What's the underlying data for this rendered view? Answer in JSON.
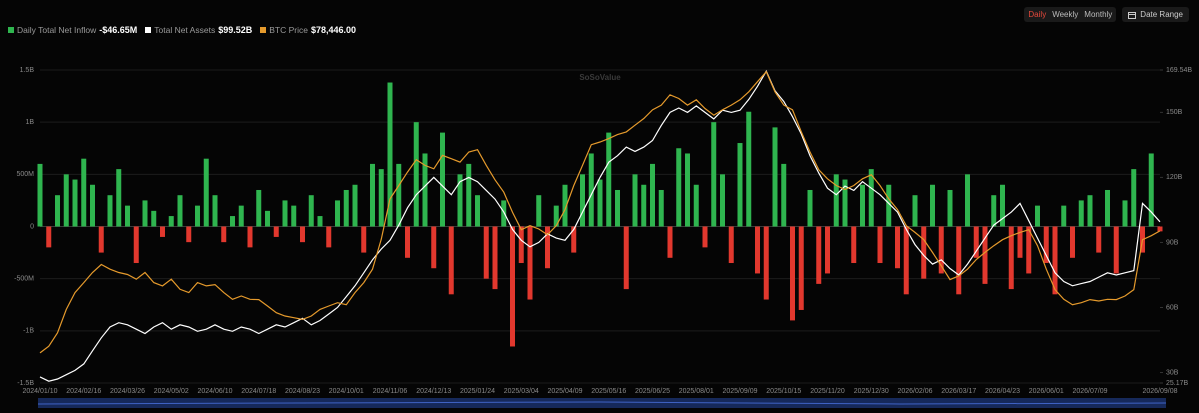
{
  "chart_data": {
    "type": "combo",
    "watermark": "SoSoValue",
    "controls": {
      "intervals": [
        "Daily",
        "Weekly",
        "Monthly"
      ],
      "active": 0,
      "date_range": "Date Range"
    },
    "grid": true,
    "categories": [
      "2024/01/10",
      null,
      null,
      null,
      null,
      "2024/02/16",
      null,
      null,
      null,
      null,
      "2024/03/26",
      null,
      null,
      null,
      null,
      "2024/05/02",
      null,
      null,
      null,
      null,
      "2024/06/10",
      null,
      null,
      null,
      null,
      "2024/07/18",
      null,
      null,
      null,
      null,
      "2024/08/23",
      null,
      null,
      null,
      null,
      "2024/10/01",
      null,
      null,
      null,
      null,
      "2024/11/06",
      null,
      null,
      null,
      null,
      "2024/12/13",
      null,
      null,
      null,
      null,
      "2025/01/24",
      null,
      null,
      null,
      null,
      "2025/03/04",
      null,
      null,
      null,
      null,
      "2025/04/09",
      null,
      null,
      null,
      null,
      "2025/05/16",
      null,
      null,
      null,
      null,
      "2025/06/25",
      null,
      null,
      null,
      null,
      "2025/08/01",
      null,
      null,
      null,
      null,
      "2025/09/09",
      null,
      null,
      null,
      null,
      "2025/10/15",
      null,
      null,
      null,
      null,
      "2025/11/20",
      null,
      null,
      null,
      null,
      "2025/12/30",
      null,
      null,
      null,
      null,
      "2026/02/06",
      null,
      null,
      null,
      null,
      "2026/03/17",
      null,
      null,
      null,
      null,
      "2026/04/23",
      null,
      null,
      null,
      null,
      "2026/06/01",
      null,
      null,
      null,
      null,
      "2026/07/09",
      null,
      null,
      null,
      null,
      null,
      null,
      null,
      "2026/09/08"
    ],
    "ylim": [
      -1500,
      1500
    ],
    "yticks": [
      {
        "value": -1500,
        "label": "-1.5B"
      },
      {
        "value": -1000,
        "label": "-1B"
      },
      {
        "value": -500,
        "label": "-500M"
      },
      0,
      {
        "value": 500,
        "label": "500M"
      },
      {
        "value": 1000,
        "label": "1B"
      },
      {
        "value": 1500,
        "label": "1.5B"
      }
    ],
    "y2lim": [
      25.17,
      169.54
    ],
    "y2ticks": [
      {
        "value": 25.17,
        "label": "25.17B"
      },
      {
        "value": 30,
        "label": "30B"
      },
      {
        "value": 60,
        "label": "60B"
      },
      {
        "value": 90,
        "label": "90B"
      },
      {
        "value": 120,
        "label": "120B"
      },
      {
        "value": 150,
        "label": "150B"
      },
      {
        "value": 169.54,
        "label": "169.54B"
      }
    ],
    "y3lim": [
      33000,
      126500
    ],
    "series": [
      {
        "name": "Daily Total Net Inflow",
        "type": "bar",
        "color": "#2fb54f",
        "negative_color": "#e2382e",
        "legend_value": "-$46.65M",
        "values": [
          600,
          -200,
          300,
          500,
          450,
          650,
          400,
          -250,
          300,
          550,
          200,
          -350,
          250,
          150,
          -100,
          100,
          300,
          -150,
          200,
          650,
          300,
          -150,
          100,
          200,
          -200,
          350,
          150,
          -100,
          250,
          200,
          -150,
          300,
          100,
          -200,
          250,
          350,
          400,
          -250,
          600,
          550,
          1380,
          600,
          -300,
          1000,
          700,
          -400,
          900,
          -650,
          500,
          600,
          300,
          -500,
          -600,
          250,
          -1150,
          -350,
          -700,
          300,
          -400,
          200,
          400,
          -250,
          500,
          700,
          450,
          900,
          350,
          -600,
          500,
          400,
          600,
          350,
          -300,
          750,
          700,
          400,
          -200,
          1000,
          500,
          -350,
          800,
          1100,
          -450,
          -700,
          950,
          600,
          -900,
          -800,
          350,
          -550,
          -450,
          500,
          450,
          -350,
          400,
          550,
          -350,
          400,
          -400,
          -650,
          300,
          -500,
          400,
          -450,
          350,
          -650,
          500,
          -300,
          -550,
          300,
          400,
          -600,
          -300,
          -450,
          200,
          -350,
          -650,
          200,
          -300,
          250,
          300,
          -250,
          350,
          -450,
          250,
          550,
          -250,
          700,
          -46.65
        ]
      },
      {
        "name": "Total Net Assets",
        "type": "line",
        "axis": "y2",
        "color": "#ffffff",
        "legend_value": "$99.52B",
        "values": [
          28,
          26,
          27,
          29,
          31,
          34,
          40,
          46,
          51,
          53,
          52,
          50,
          48,
          51,
          53,
          50,
          52,
          51,
          49,
          50,
          52,
          50,
          49,
          51,
          50,
          48,
          50,
          52,
          51,
          53,
          55,
          52,
          54,
          57,
          60,
          65,
          70,
          76,
          82,
          87,
          91,
          98,
          106,
          112,
          116,
          120,
          116,
          112,
          118,
          120,
          118,
          114,
          110,
          104,
          96,
          91,
          88,
          90,
          94,
          92,
          91,
          96,
          104,
          112,
          120,
          127,
          130,
          134,
          132,
          134,
          137,
          144,
          150,
          152,
          150,
          153,
          150,
          147,
          151,
          150,
          151,
          156,
          162,
          169,
          160,
          155,
          148,
          140,
          130,
          122,
          115,
          112,
          116,
          114,
          118,
          115,
          112,
          108,
          104,
          96,
          89,
          84,
          80,
          82,
          78,
          75,
          80,
          86,
          92,
          98,
          101,
          104,
          108,
          100,
          92,
          84,
          76,
          72,
          70,
          71,
          72,
          74,
          76,
          75,
          76,
          77,
          108,
          104,
          99.52
        ]
      },
      {
        "name": "BTC Price",
        "type": "line",
        "axis": "y3",
        "color": "#e59a2c",
        "legend_value": "$78,446.00",
        "values": [
          42000,
          44000,
          48000,
          55000,
          60000,
          63000,
          66000,
          68400,
          67000,
          66000,
          65400,
          64000,
          66000,
          63000,
          62000,
          64000,
          61000,
          60000,
          63000,
          62000,
          62400,
          60000,
          58000,
          59000,
          58000,
          57900,
          56000,
          54000,
          53000,
          52500,
          52000,
          53000,
          55000,
          56000,
          57000,
          56400,
          60000,
          63000,
          67000,
          76000,
          88000,
          92000,
          96000,
          99700,
          98000,
          97000,
          101000,
          100000,
          99000,
          102000,
          102700,
          98000,
          93700,
          90000,
          84000,
          78800,
          80000,
          79000,
          77300,
          80000,
          84800,
          92000,
          98000,
          104200,
          105000,
          106000,
          107200,
          108000,
          110000,
          112000,
          114600,
          116000,
          119100,
          118000,
          116000,
          117600,
          115000,
          113000,
          114600,
          116000,
          117600,
          120000,
          123000,
          126000,
          120000,
          116000,
          114600,
          108000,
          102000,
          96700,
          94000,
          92000,
          90800,
          92000,
          94000,
          95200,
          92000,
          88000,
          84800,
          80000,
          78000,
          75800,
          72000,
          68000,
          63900,
          65000,
          67000,
          69900,
          72000,
          74000,
          75800,
          77000,
          78000,
          78800,
          74000,
          67000,
          60900,
          58000,
          56400,
          57000,
          57900,
          57500,
          58000,
          57900,
          59000,
          60900,
          75800,
          77000,
          78446
        ]
      }
    ]
  }
}
